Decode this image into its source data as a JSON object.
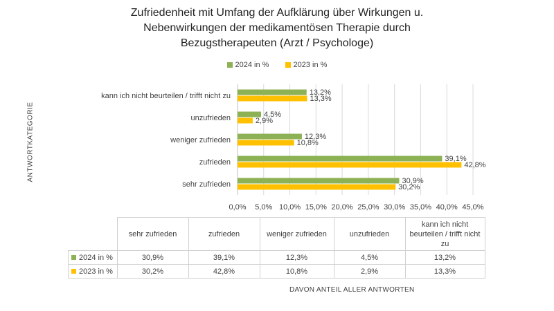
{
  "title_lines": [
    "Zufriedenheit mit Umfang der Aufklärung über Wirkungen u.",
    "Nebenwirkungen der medikamentösen Therapie durch",
    "Bezugstherapeuten (Arzt / Psychologe)"
  ],
  "colors": {
    "series_2024": "#8db255",
    "series_2023": "#ffc000",
    "grid": "#d9d9d9",
    "axis": "#bfbfbf"
  },
  "chart_data": {
    "type": "bar",
    "orientation": "horizontal",
    "title": "Zufriedenheit mit Umfang der Aufklärung über Wirkungen u. Nebenwirkungen der medikamentösen Therapie durch Bezugstherapeuten (Arzt / Psychologe)",
    "categories": [
      "kann ich nicht beurteilen / trifft nicht zu",
      "unzufrieden",
      "weniger zufrieden",
      "zufrieden",
      "sehr zufrieden"
    ],
    "series": [
      {
        "name": "2024 in %",
        "values": [
          13.2,
          4.5,
          12.3,
          39.1,
          30.9
        ],
        "labels": [
          "13,2%",
          "4,5%",
          "12,3%",
          "39,1%",
          "30,9%"
        ]
      },
      {
        "name": "2023 in %",
        "values": [
          13.3,
          2.9,
          10.8,
          42.8,
          30.2
        ],
        "labels": [
          "13,3%",
          "2,9%",
          "10,8%",
          "42,8%",
          "30,2%"
        ]
      }
    ],
    "ylabel": "ANTWORTKATEGORIE",
    "xlabel": "DAVON ANTEIL ALLER ANTWORTEN",
    "xlim": [
      0,
      45
    ],
    "xticks": [
      0,
      5,
      10,
      15,
      20,
      25,
      30,
      35,
      40,
      45
    ],
    "xtick_labels": [
      "0,0%",
      "5,0%",
      "10,0%",
      "15,0%",
      "20,0%",
      "25,0%",
      "30,0%",
      "35,0%",
      "40,0%",
      "45,0%"
    ],
    "legend_position": "top-center",
    "grid": true
  },
  "table": {
    "headers": [
      "sehr zufrieden",
      "zufrieden",
      "weniger zufrieden",
      "unzufrieden",
      "kann ich nicht beurteilen / trifft nicht zu"
    ],
    "rows": [
      {
        "label": "2024 in %",
        "cells": [
          "30,9%",
          "39,1%",
          "12,3%",
          "4,5%",
          "13,2%"
        ]
      },
      {
        "label": "2023 in %",
        "cells": [
          "30,2%",
          "42,8%",
          "10,8%",
          "2,9%",
          "13,3%"
        ]
      }
    ]
  }
}
